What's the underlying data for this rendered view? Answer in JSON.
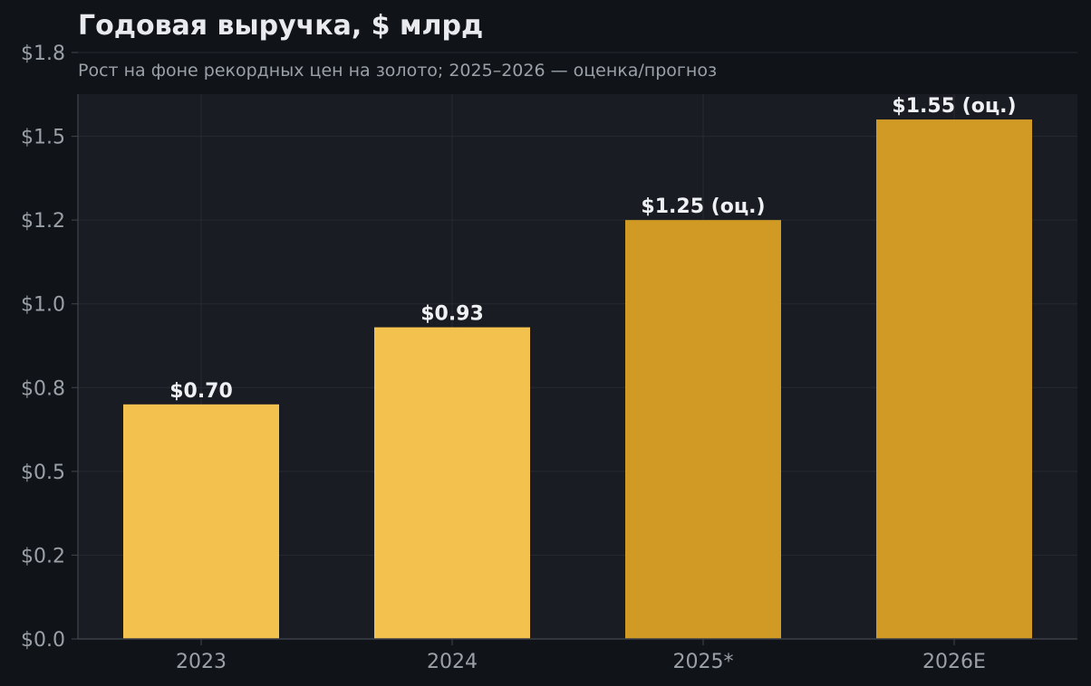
{
  "chart_data": {
    "type": "bar",
    "title": "Годовая выручка, $ млрд",
    "subtitle": "Рост на фоне рекордных цен на золото; 2025–2026 — оценка/прогноз",
    "xlabel": "",
    "ylabel": "",
    "categories": [
      "2023",
      "2024",
      "2025*",
      "2026E"
    ],
    "values": [
      0.7,
      0.93,
      1.25,
      1.55
    ],
    "data_labels": [
      "$0.70",
      "$0.93",
      "$1.25 (оц.)",
      "$1.55 (оц.)"
    ],
    "bar_colors": [
      "#f2c14e",
      "#f2c14e",
      "#d19a24",
      "#d19a24"
    ],
    "ylim": [
      0,
      1.75
    ],
    "y_ticks": [
      0,
      0.25,
      0.5,
      0.75,
      1.0,
      1.25,
      1.5,
      1.75
    ],
    "y_tick_labels": [
      "$0.0",
      "$0.2",
      "$0.5",
      "$0.8",
      "$1.0",
      "$1.2",
      "$1.5",
      "$1.8"
    ],
    "grid": true,
    "colors": {
      "background": "#101418",
      "plot_background": "#191c23",
      "grid": "#262a32",
      "axis": "#3a3f48"
    }
  }
}
